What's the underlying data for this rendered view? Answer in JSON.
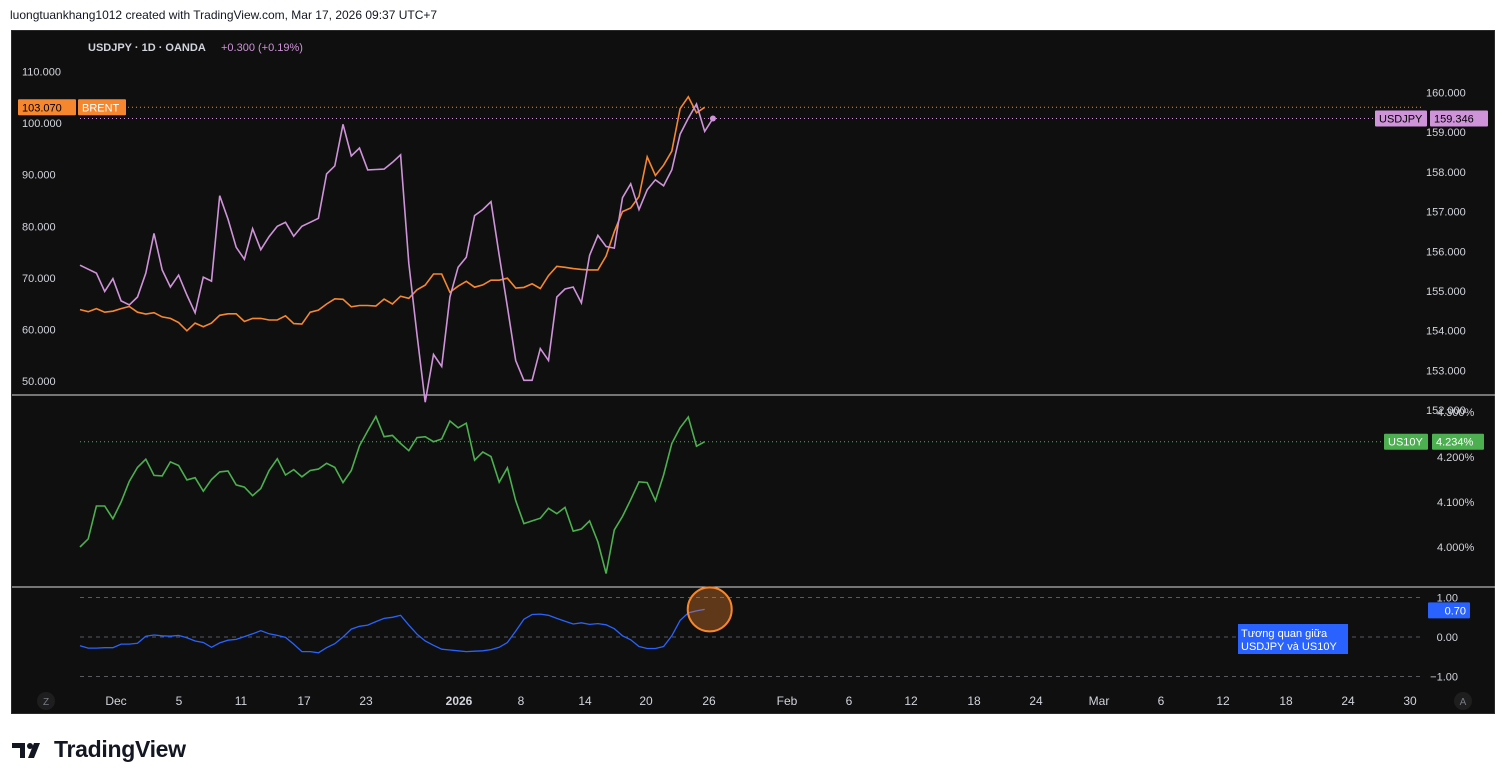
{
  "header": {
    "text": "luongtuankhang1012 created with TradingView.com, Mar 17, 2026 09:37 UTC+7"
  },
  "footer": {
    "brand": "TradingView"
  },
  "symbol_info": {
    "name": "USDJPY · 1D · OANDA",
    "change": "+0.300 (+0.19%)",
    "change_color": "#ce93d8"
  },
  "badges": {
    "brent_value": "103.070",
    "brent_name": "BRENT",
    "usdjpy_name": "USDJPY",
    "usdjpy_value": "159.346",
    "us10y_name": "US10Y",
    "us10y_value": "4.234%",
    "corr_value": "0.70",
    "corr_note_line1": "Tương quan giữa",
    "corr_note_line2": "USDJPY và US10Y"
  },
  "corner_buttons": {
    "left": "Z",
    "right": "A"
  },
  "colors": {
    "background": "#0f0f0f",
    "usdjpy": "#ce93d8",
    "brent": "#f7872e",
    "us10y": "#4caf50",
    "corr": "#2962ff",
    "text": "#d1d4dc",
    "separator": "#ffffff"
  },
  "chart_data": [
    {
      "type": "line",
      "panel": "price",
      "x_tick_labels": [
        "Dec",
        "5",
        "11",
        "17",
        "23",
        "2026",
        "8",
        "14",
        "20",
        "26",
        "Feb",
        "6",
        "12",
        "18",
        "24",
        "Mar",
        "6",
        "12",
        "18",
        "24",
        "30"
      ],
      "y_left_ticks": [
        "110.000",
        "100.000",
        "90.000",
        "80.000",
        "70.000",
        "60.000",
        "50.000"
      ],
      "y_left_range": [
        50,
        110
      ],
      "y_right_ticks": [
        "160.000",
        "159.000",
        "158.000",
        "157.000",
        "156.000",
        "155.000",
        "154.000",
        "153.000",
        "152.000"
      ],
      "y_right_range": [
        152,
        160
      ],
      "series": [
        {
          "name": "USDJPY",
          "axis": "right",
          "values": [
            155.65,
            155.55,
            155.45,
            154.99,
            155.31,
            154.75,
            154.65,
            154.85,
            155.45,
            156.45,
            155.53,
            155.1,
            155.4,
            154.9,
            154.45,
            155.35,
            155.25,
            157.4,
            156.81,
            156.1,
            155.8,
            156.57,
            156.04,
            156.37,
            156.63,
            156.73,
            156.38,
            156.63,
            156.73,
            156.83,
            157.95,
            158.15,
            159.2,
            158.4,
            158.6,
            158.05,
            158.06,
            158.07,
            158.24,
            158.43,
            155.7,
            153.9,
            152.2,
            153.4,
            153.1,
            154.85,
            155.6,
            155.85,
            156.9,
            157.05,
            157.25,
            155.9,
            154.6,
            153.25,
            152.75,
            152.75,
            153.55,
            153.25,
            154.85,
            155.05,
            155.1,
            154.7,
            155.9,
            156.4,
            156.12,
            156.08,
            157.35,
            157.7,
            157.05,
            157.55,
            157.8,
            157.65,
            158.05,
            158.95,
            159.35,
            159.71,
            159.02,
            159.346
          ]
        },
        {
          "name": "BRENT",
          "axis": "left",
          "values": [
            63.85,
            63.45,
            64.05,
            63.35,
            63.55,
            64.05,
            64.45,
            63.35,
            63.0,
            63.25,
            62.45,
            62.15,
            61.35,
            59.75,
            61.25,
            60.55,
            61.25,
            62.75,
            63.05,
            63.05,
            61.55,
            62.15,
            62.15,
            61.85,
            61.85,
            62.65,
            61.15,
            61.05,
            63.35,
            63.75,
            64.95,
            65.95,
            65.85,
            64.4,
            64.65,
            64.65,
            64.55,
            65.9,
            64.95,
            66.45,
            66.05,
            67.7,
            68.6,
            70.75,
            70.75,
            67.2,
            68.4,
            69.35,
            68.2,
            68.65,
            69.55,
            69.55,
            69.95,
            68.05,
            68.15,
            68.85,
            67.95,
            70.45,
            72.25,
            72.05,
            71.8,
            71.65,
            71.55,
            71.55,
            74.25,
            78.95,
            82.85,
            83.55,
            85.75,
            93.45,
            89.85,
            91.85,
            94.55,
            102.8,
            105.1,
            102.0,
            103.07
          ]
        }
      ]
    },
    {
      "type": "line",
      "panel": "us10y",
      "y_ticks": [
        "4.300%",
        "4.200%",
        "4.100%",
        "4.000%"
      ],
      "y_range": [
        3.9,
        4.31
      ],
      "series": [
        {
          "name": "US10Y",
          "values": [
            4.0,
            4.018,
            4.091,
            4.091,
            4.063,
            4.1,
            4.146,
            4.177,
            4.195,
            4.159,
            4.158,
            4.189,
            4.181,
            4.149,
            4.154,
            4.124,
            4.15,
            4.167,
            4.169,
            4.138,
            4.133,
            4.114,
            4.13,
            4.17,
            4.196,
            4.16,
            4.172,
            4.156,
            4.17,
            4.173,
            4.186,
            4.177,
            4.143,
            4.17,
            4.225,
            4.258,
            4.29,
            4.245,
            4.248,
            4.23,
            4.214,
            4.243,
            4.245,
            4.234,
            4.24,
            4.28,
            4.265,
            4.275,
            4.193,
            4.211,
            4.201,
            4.144,
            4.176,
            4.103,
            4.052,
            4.058,
            4.064,
            4.086,
            4.074,
            4.088,
            4.035,
            4.04,
            4.058,
            4.011,
            3.941,
            4.038,
            4.068,
            4.105,
            4.145,
            4.143,
            4.103,
            4.16,
            4.23,
            4.265,
            4.289,
            4.224,
            4.234
          ]
        }
      ]
    },
    {
      "type": "line",
      "panel": "correlation",
      "y_ticks": [
        "1.00",
        "0.00",
        "−1.00"
      ],
      "y_range": [
        -1.0,
        1.0
      ],
      "series": [
        {
          "name": "",
          "values": [
            -0.22,
            -0.28,
            -0.28,
            -0.27,
            -0.27,
            -0.18,
            -0.18,
            -0.16,
            0.02,
            0.05,
            0.03,
            0.02,
            0.04,
            -0.02,
            -0.1,
            -0.14,
            -0.26,
            -0.15,
            -0.08,
            -0.06,
            0.01,
            0.08,
            0.16,
            0.08,
            0.04,
            -0.01,
            -0.18,
            -0.37,
            -0.37,
            -0.4,
            -0.27,
            -0.17,
            0.0,
            0.2,
            0.27,
            0.3,
            0.39,
            0.47,
            0.5,
            0.55,
            0.3,
            0.07,
            -0.1,
            -0.21,
            -0.31,
            -0.33,
            -0.35,
            -0.37,
            -0.36,
            -0.35,
            -0.32,
            -0.26,
            -0.14,
            0.15,
            0.45,
            0.57,
            0.58,
            0.55,
            0.47,
            0.4,
            0.33,
            0.36,
            0.32,
            0.34,
            0.31,
            0.21,
            0.03,
            -0.07,
            -0.24,
            -0.29,
            -0.29,
            -0.24,
            0.03,
            0.42,
            0.61,
            0.66,
            0.7
          ]
        }
      ]
    }
  ]
}
